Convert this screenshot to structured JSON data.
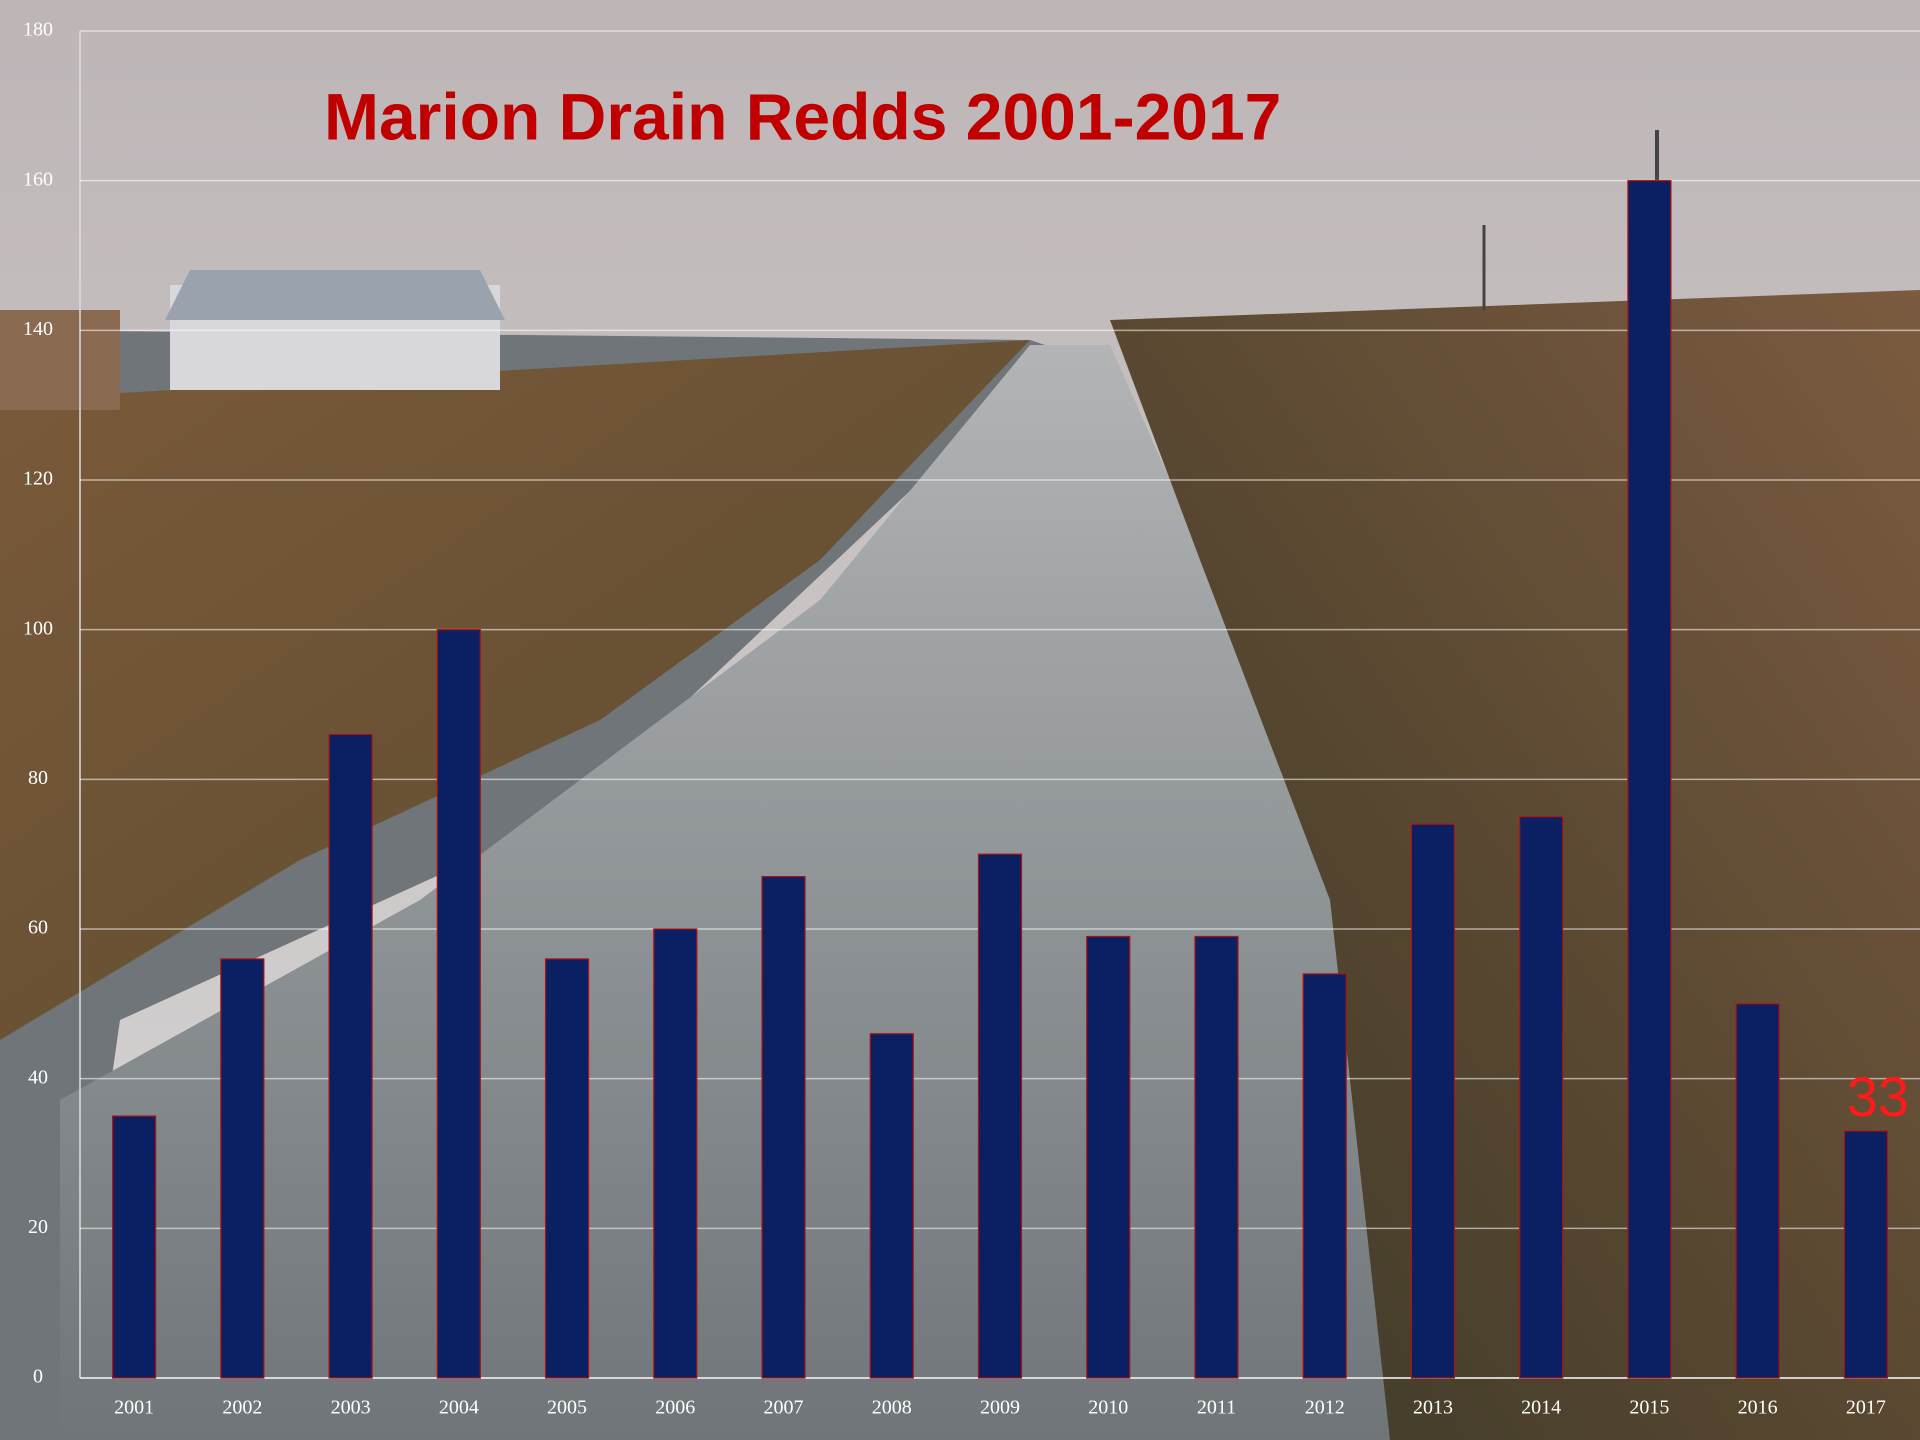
{
  "chart_data": {
    "type": "bar",
    "title": "Marion Drain Redds 2001-2017",
    "categories": [
      "2001",
      "2002",
      "2003",
      "2004",
      "2005",
      "2006",
      "2007",
      "2008",
      "2009",
      "2010",
      "2011",
      "2012",
      "2013",
      "2014",
      "2015",
      "2016",
      "2017"
    ],
    "values": [
      35,
      56,
      86,
      100,
      56,
      60,
      67,
      46,
      70,
      59,
      59,
      54,
      74,
      75,
      160,
      50,
      33
    ],
    "value_labels": [
      null,
      null,
      null,
      null,
      null,
      null,
      null,
      null,
      null,
      null,
      null,
      null,
      null,
      null,
      null,
      null,
      "33"
    ],
    "color": "#0b1f63",
    "edge_color": "#b01010",
    "label_color": "#ff1a1a",
    "ylim": [
      0,
      180
    ],
    "yticks": [
      0,
      20,
      40,
      60,
      80,
      100,
      120,
      140,
      160,
      180
    ],
    "grid": true
  }
}
